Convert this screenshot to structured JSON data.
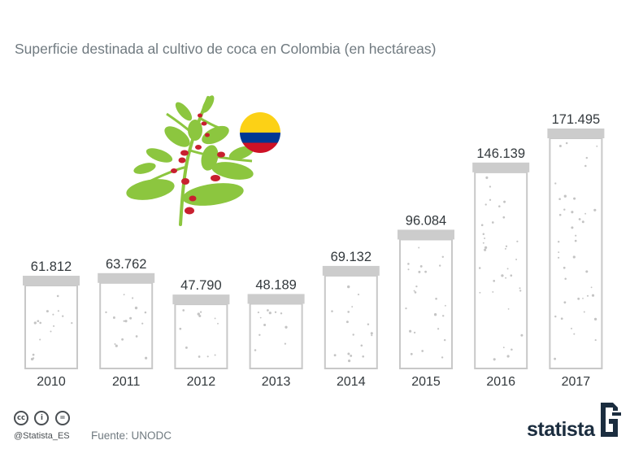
{
  "title": "Superficie destinada al cultivo de coca en Colombia (en hectáreas)",
  "footer": {
    "handle": "@Statista_ES",
    "source": "Fuente: UNODC",
    "brand": "statista",
    "license_icons": [
      "cc-icon",
      "by-icon",
      "nd-icon"
    ]
  },
  "colors": {
    "title": "#707a80",
    "glass_outline": "#c8c8c8",
    "glass_lid": "#cccccc",
    "dots": "#c4c4c4",
    "text": "#33393d",
    "brand": "#1b2d3f"
  },
  "chart_data": {
    "type": "bar",
    "title": "Superficie destinada al cultivo de coca en Colombia (en hectáreas)",
    "categories": [
      "2010",
      "2011",
      "2012",
      "2013",
      "2014",
      "2015",
      "2016",
      "2017"
    ],
    "values": [
      61812,
      63762,
      47790,
      48189,
      69132,
      96084,
      146139,
      171495
    ],
    "value_labels": [
      "61.812",
      "63.762",
      "47.790",
      "48.189",
      "69.132",
      "96.084",
      "146.139",
      "171.495"
    ],
    "ylim": [
      0,
      171495
    ],
    "grid": false,
    "legend": "none"
  }
}
